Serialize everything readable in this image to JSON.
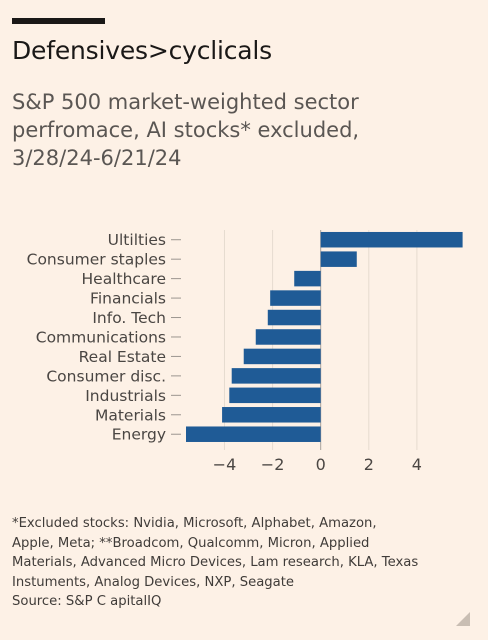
{
  "title": "Defensives>cyclicals",
  "subtitle": "S&P 500 market-weighted sector perfromace, AI stocks* excluded, 3/28/24-6/21/24",
  "footnote": {
    "line1": "*Excluded stocks: Nvidia, Microsoft, Alphabet, Amazon,",
    "line2": "Apple, Meta; **Broadcom, Qualcomm, Micron, Applied",
    "line3": "Materials, Advanced Micro Devices, Lam research, KLA, Texas",
    "line4": "Instuments, Analog Devices, NXP, Seagate",
    "source": "Source: S&P C apitalIQ"
  },
  "chart_data": {
    "type": "bar",
    "orientation": "horizontal",
    "categories": [
      "Ultilties",
      "Consumer staples",
      "Healthcare",
      "Financials",
      "Info. Tech",
      "Communications",
      "Real Estate",
      "Consumer disc.",
      "Industrials",
      "Materials",
      "Energy"
    ],
    "values": [
      5.9,
      1.5,
      -1.1,
      -2.1,
      -2.2,
      -2.7,
      -3.2,
      -3.7,
      -3.8,
      -4.1,
      -5.6
    ],
    "xlim": [
      -5.6,
      6.0
    ],
    "xticks": [
      -4,
      -2,
      0,
      2,
      4
    ],
    "xtick_labels": [
      "−4",
      "−2",
      "0",
      "2",
      "4"
    ],
    "grid": "vertical",
    "bar_color": "#1f5b96"
  }
}
